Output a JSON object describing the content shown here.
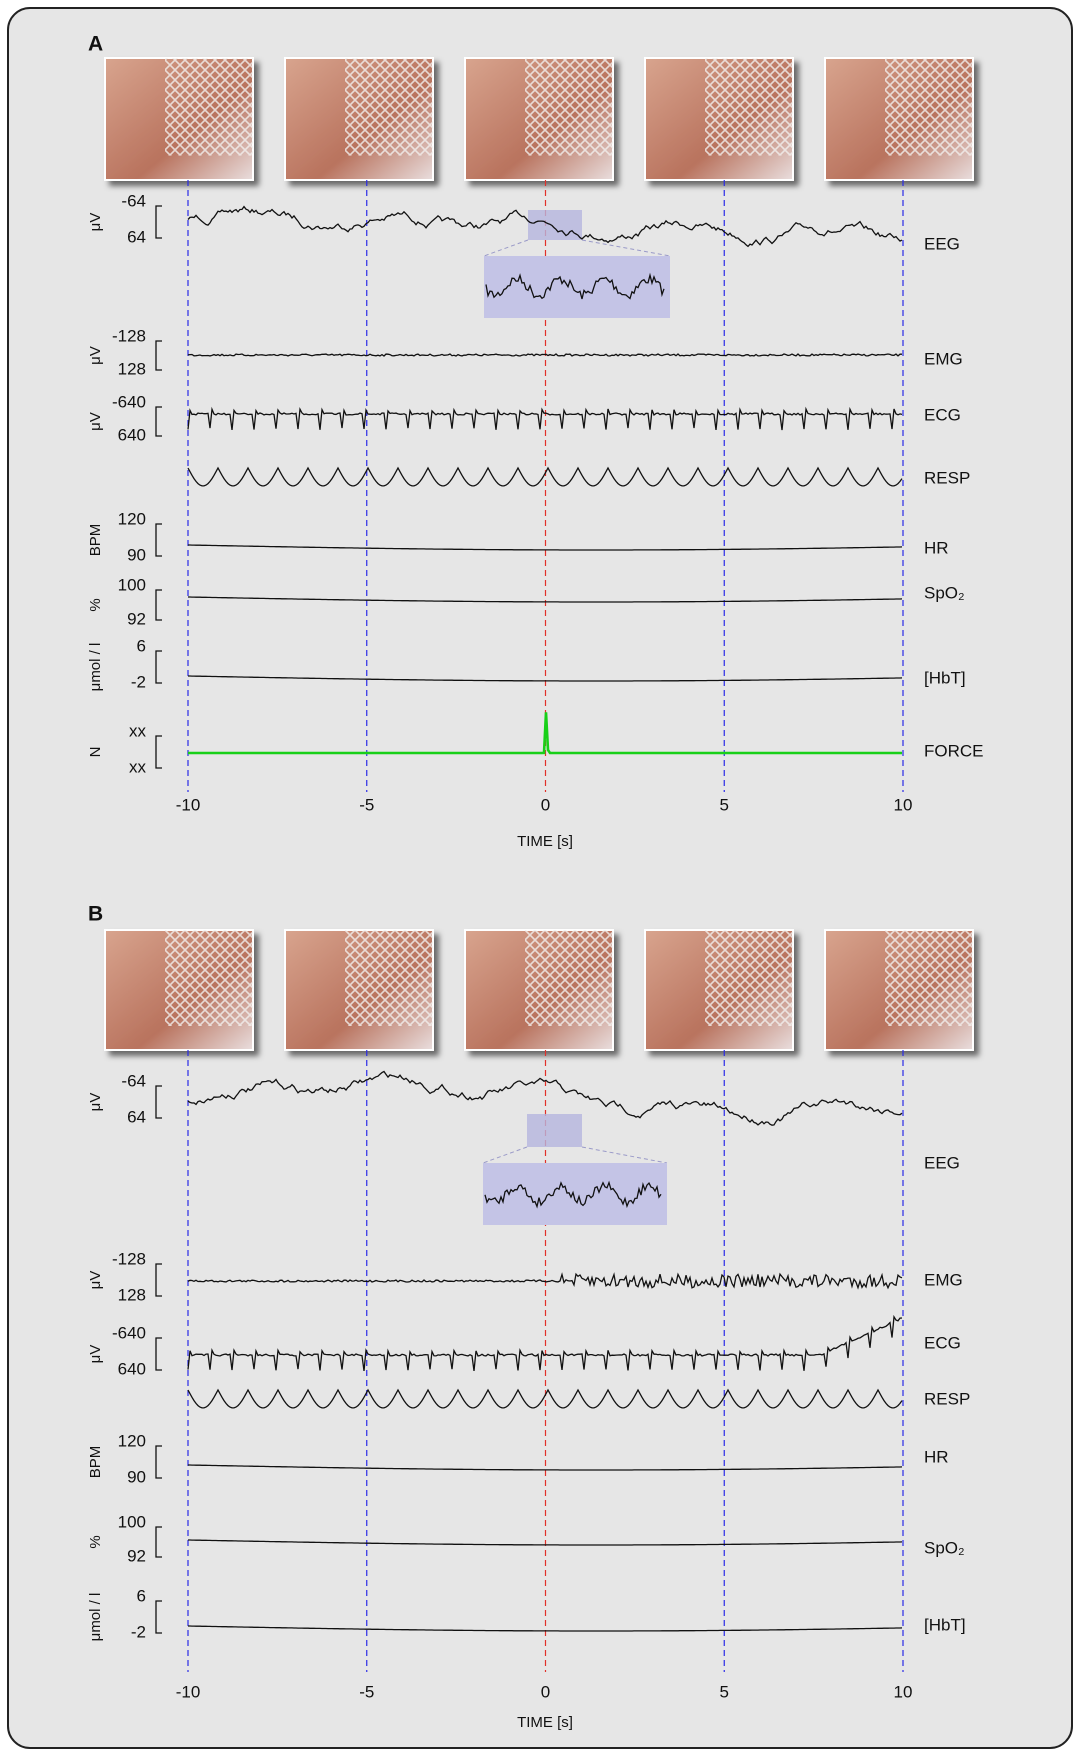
{
  "panels": [
    {
      "label": "A",
      "channels": [
        {
          "name": "EEG",
          "unit": "μV",
          "scale": [
            -64,
            64
          ]
        },
        {
          "name": "EMG",
          "unit": "μV",
          "scale": [
            -128,
            128
          ]
        },
        {
          "name": "ECG",
          "unit": "μV",
          "scale": [
            -640,
            640
          ]
        },
        {
          "name": "RESP"
        },
        {
          "name": "HR",
          "unit": "BPM",
          "scale": [
            120,
            90
          ]
        },
        {
          "name": "SpO₂",
          "unit": "%",
          "scale": [
            100,
            92
          ]
        },
        {
          "name": "[HbT]",
          "unit": "μmol / l",
          "scale": [
            6,
            -2
          ]
        },
        {
          "name": "FORCE",
          "unit": "N",
          "scale": [
            "xx",
            "xx"
          ]
        }
      ],
      "xticks": [
        -10,
        -5,
        0,
        5,
        10
      ],
      "xlabel": "TIME [s]"
    },
    {
      "label": "B",
      "channels": [
        {
          "name": "EEG",
          "unit": "μV",
          "scale": [
            -64,
            64
          ]
        },
        {
          "name": "EMG",
          "unit": "μV",
          "scale": [
            -128,
            128
          ]
        },
        {
          "name": "ECG",
          "unit": "μV",
          "scale": [
            -640,
            640
          ]
        },
        {
          "name": "RESP"
        },
        {
          "name": "HR",
          "unit": "BPM",
          "scale": [
            120,
            90
          ]
        },
        {
          "name": "SpO₂",
          "unit": "%",
          "scale": [
            100,
            92
          ]
        },
        {
          "name": "[HbT]",
          "unit": "μmol / l",
          "scale": [
            6,
            -2
          ]
        }
      ],
      "xticks": [
        -10,
        -5,
        0,
        5,
        10
      ],
      "xlabel": "TIME [s]"
    }
  ]
}
